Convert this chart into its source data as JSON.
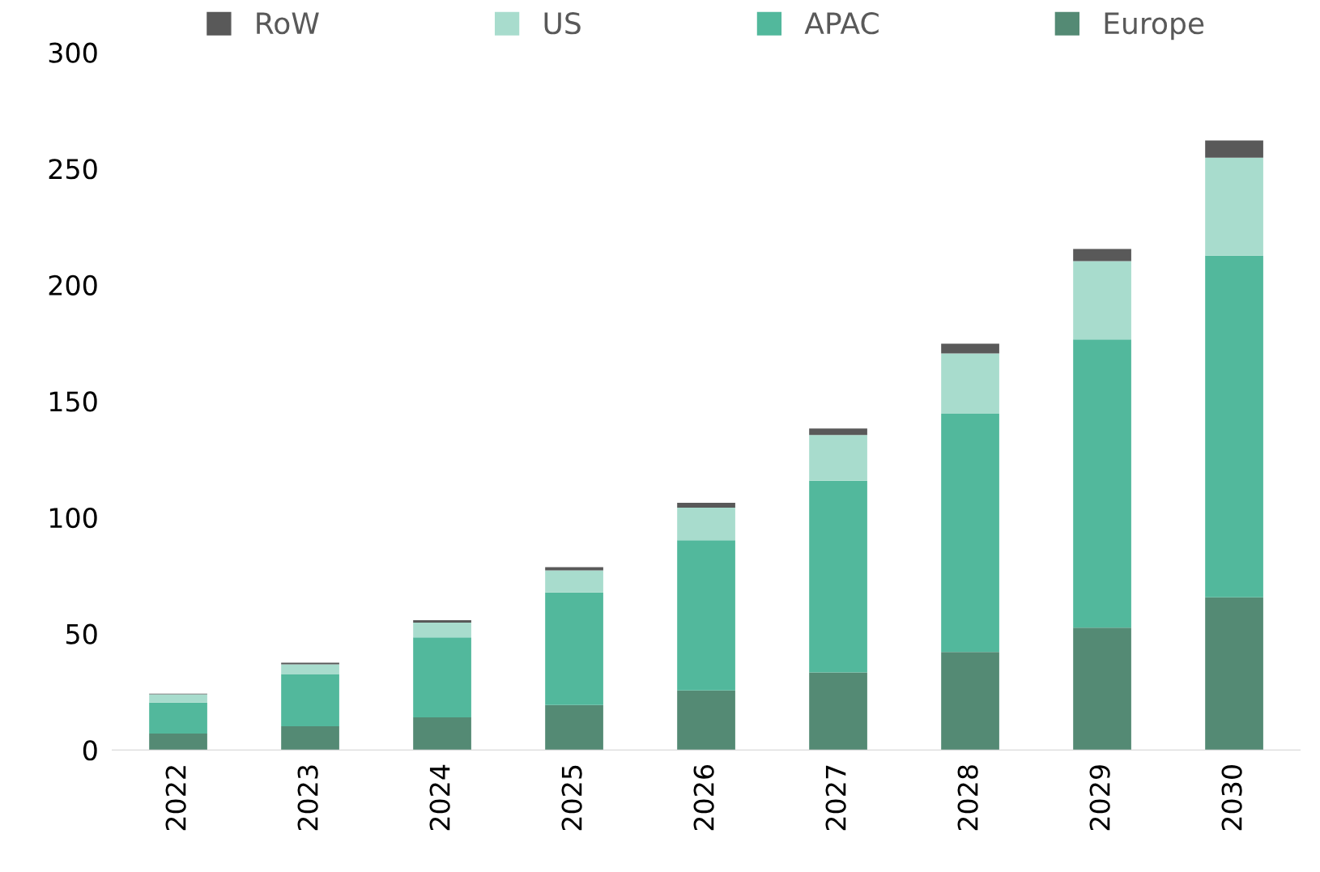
{
  "chart_data": {
    "type": "bar",
    "stacked": true,
    "categories": [
      "2022",
      "2023",
      "2024",
      "2025",
      "2026",
      "2027",
      "2028",
      "2029",
      "2030"
    ],
    "series": [
      {
        "name": "Europe",
        "color": "#548a74",
        "values": [
          7.0,
          10.2,
          14.0,
          19.3,
          25.6,
          33.3,
          42.1,
          52.6,
          65.6
        ]
      },
      {
        "name": "APAC",
        "color": "#52b89c",
        "values": [
          13.4,
          22.4,
          34.4,
          48.4,
          64.6,
          82.5,
          102.5,
          123.9,
          147.0
        ]
      },
      {
        "name": "US",
        "color": "#a8dccd",
        "values": [
          3.5,
          4.2,
          6.3,
          9.5,
          14.0,
          19.6,
          25.9,
          33.7,
          42.1
        ]
      },
      {
        "name": "RoW",
        "color": "#595959",
        "values": [
          0.3,
          0.7,
          1.1,
          1.4,
          2.1,
          2.8,
          4.2,
          5.2,
          7.4
        ]
      }
    ],
    "ylim": [
      0,
      300
    ],
    "yticks": [
      0,
      50,
      100,
      150,
      200,
      250,
      300
    ],
    "grid": false,
    "legend": "top"
  }
}
